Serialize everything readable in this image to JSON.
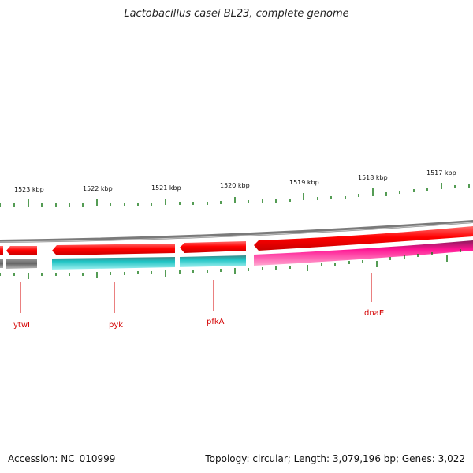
{
  "map": {
    "title": "Lactobacillus casei BL23, complete genome",
    "accession": "Accession: NC_010999",
    "summary": "Topology: circular; Length: 3,079,196 bp; Genes: 3,022",
    "ticks": [
      "1523 kbp",
      "1522 kbp",
      "1521 kbp",
      "1520 kbp",
      "1519 kbp",
      "1518 kbp",
      "1517 kbp"
    ],
    "genes": [
      "ytwI",
      "pyk",
      "pfkA",
      "dnaE"
    ],
    "colors": {
      "backbone": "#808080",
      "cds_forward": "#ff0000",
      "cds_reverse_dark": "#666666",
      "cds_teal": "#20c4c4",
      "cds_magenta": "#ff1493",
      "tick": "#1a7a1a",
      "label_line": "#d40000"
    }
  }
}
